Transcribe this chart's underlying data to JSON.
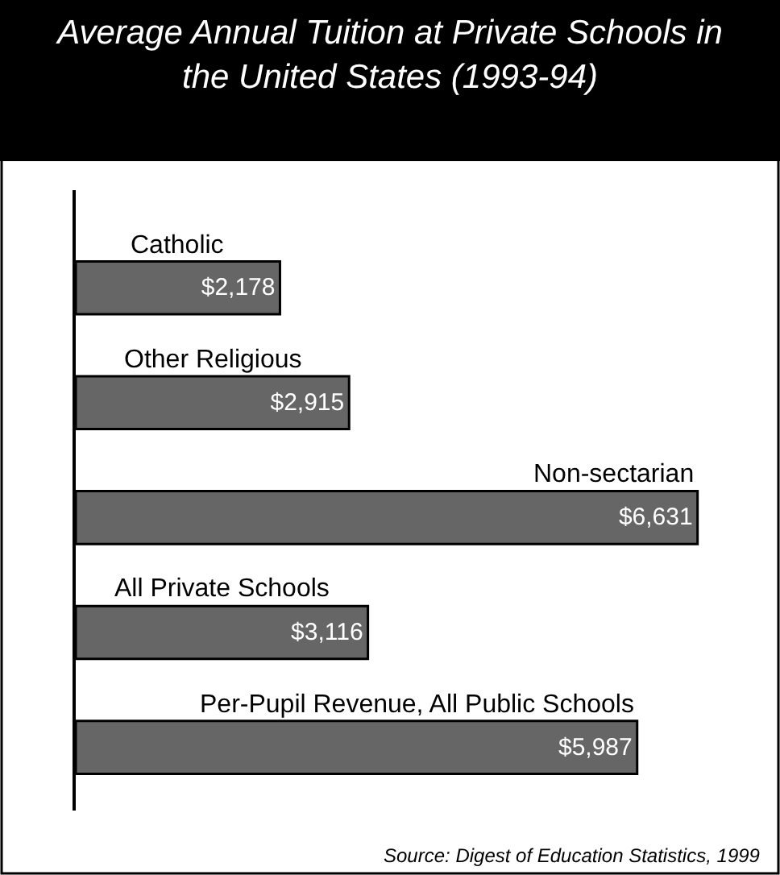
{
  "chart_data": {
    "type": "bar",
    "orientation": "horizontal",
    "title": "Average Annual Tuition at Private Schools in\nthe United States (1993-94)",
    "categories": [
      "Catholic",
      "Other Religious",
      "Non-sectarian",
      "All Private Schools",
      "Per-Pupil Revenue, All Public Schools"
    ],
    "values": [
      2178,
      2915,
      6631,
      3116,
      5987
    ],
    "value_labels": [
      "$2,178",
      "$2,915",
      "$6,631",
      "$3,116",
      "$5,987"
    ],
    "color": "#666666",
    "tick_labels": false,
    "annotations": [
      "Source: Digest of Education Statistics, 1999"
    ]
  }
}
